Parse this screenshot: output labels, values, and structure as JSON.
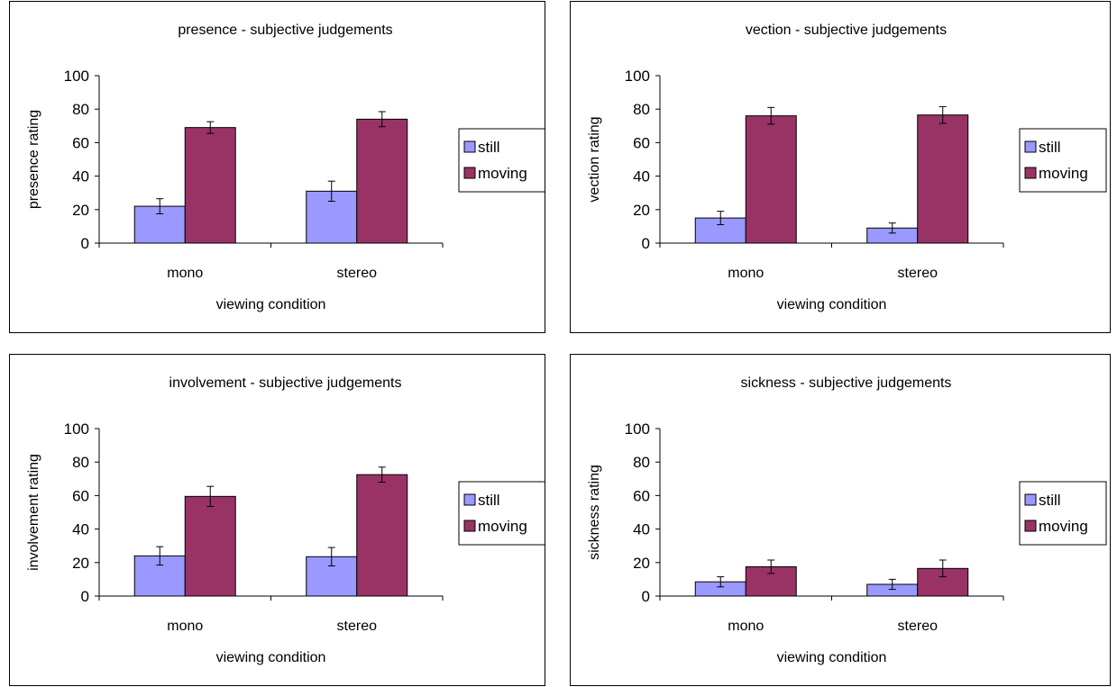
{
  "chart_data": [
    {
      "type": "bar",
      "title": "presence - subjective judgements",
      "xlabel": "viewing condition",
      "ylabel": "presence rating",
      "categories": [
        "mono",
        "stereo"
      ],
      "series": [
        {
          "name": "still",
          "values": [
            22,
            31
          ],
          "errors": [
            4.5,
            6
          ]
        },
        {
          "name": "moving",
          "values": [
            69,
            74
          ],
          "errors": [
            3.5,
            4.5
          ]
        }
      ],
      "ylim": [
        0,
        100
      ],
      "yticks": [
        0,
        20,
        40,
        60,
        80,
        100
      ],
      "legend": "right",
      "grid": false
    },
    {
      "type": "bar",
      "title": "vection - subjective judgements",
      "xlabel": "viewing condition",
      "ylabel": "vection rating",
      "categories": [
        "mono",
        "stereo"
      ],
      "series": [
        {
          "name": "still",
          "values": [
            15,
            9
          ],
          "errors": [
            4,
            3
          ]
        },
        {
          "name": "moving",
          "values": [
            76,
            76.5
          ],
          "errors": [
            5,
            5
          ]
        }
      ],
      "ylim": [
        0,
        100
      ],
      "yticks": [
        0,
        20,
        40,
        60,
        80,
        100
      ],
      "legend": "right",
      "grid": false
    },
    {
      "type": "bar",
      "title": "involvement - subjective judgements",
      "xlabel": "viewing condition",
      "ylabel": "involvement rating",
      "categories": [
        "mono",
        "stereo"
      ],
      "series": [
        {
          "name": "still",
          "values": [
            24,
            23.5
          ],
          "errors": [
            5.5,
            5.5
          ]
        },
        {
          "name": "moving",
          "values": [
            59.5,
            72.5
          ],
          "errors": [
            6,
            4.5
          ]
        }
      ],
      "ylim": [
        0,
        100
      ],
      "yticks": [
        0,
        20,
        40,
        60,
        80,
        100
      ],
      "legend": "right",
      "grid": false
    },
    {
      "type": "bar",
      "title": "sickness - subjective judgements",
      "xlabel": "viewing condition",
      "ylabel": "sickness rating",
      "categories": [
        "mono",
        "stereo"
      ],
      "series": [
        {
          "name": "still",
          "values": [
            8.5,
            7
          ],
          "errors": [
            3,
            3
          ]
        },
        {
          "name": "moving",
          "values": [
            17.5,
            16.5
          ],
          "errors": [
            4,
            5
          ]
        }
      ],
      "ylim": [
        0,
        100
      ],
      "yticks": [
        0,
        20,
        40,
        60,
        80,
        100
      ],
      "legend": "right",
      "grid": false
    }
  ],
  "colors": {
    "still": "#9999ff",
    "moving": "#993366",
    "axis": "#000000",
    "border": "#000000"
  }
}
